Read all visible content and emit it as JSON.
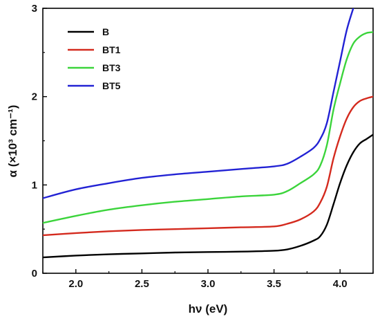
{
  "chart_data": {
    "type": "line",
    "xlabel": "hν (eV)",
    "ylabel": "α (×10³ cm⁻¹)",
    "xlim": [
      1.75,
      4.25
    ],
    "ylim": [
      0,
      3
    ],
    "xticks": [
      2.0,
      2.5,
      3.0,
      3.5,
      4.0
    ],
    "xtick_labels": [
      "2.0",
      "2.5",
      "3.0",
      "3.5",
      "4.0"
    ],
    "yticks": [
      0,
      1,
      2,
      3
    ],
    "ytick_labels": [
      "0",
      "1",
      "2",
      "3"
    ],
    "legend_position": "top-left",
    "series": [
      {
        "name": "B",
        "color": "#000000",
        "points": [
          [
            1.75,
            0.18
          ],
          [
            2.0,
            0.2
          ],
          [
            2.25,
            0.215
          ],
          [
            2.5,
            0.225
          ],
          [
            2.75,
            0.235
          ],
          [
            3.0,
            0.24
          ],
          [
            3.25,
            0.245
          ],
          [
            3.5,
            0.255
          ],
          [
            3.6,
            0.27
          ],
          [
            3.7,
            0.31
          ],
          [
            3.8,
            0.37
          ],
          [
            3.85,
            0.42
          ],
          [
            3.9,
            0.55
          ],
          [
            3.95,
            0.78
          ],
          [
            4.0,
            1.02
          ],
          [
            4.05,
            1.22
          ],
          [
            4.1,
            1.37
          ],
          [
            4.15,
            1.47
          ],
          [
            4.2,
            1.52
          ],
          [
            4.25,
            1.57
          ]
        ]
      },
      {
        "name": "BT1",
        "color": "#d42a1e",
        "points": [
          [
            1.75,
            0.43
          ],
          [
            2.0,
            0.455
          ],
          [
            2.25,
            0.475
          ],
          [
            2.5,
            0.49
          ],
          [
            2.75,
            0.5
          ],
          [
            3.0,
            0.51
          ],
          [
            3.25,
            0.52
          ],
          [
            3.5,
            0.53
          ],
          [
            3.6,
            0.56
          ],
          [
            3.7,
            0.61
          ],
          [
            3.8,
            0.7
          ],
          [
            3.85,
            0.8
          ],
          [
            3.9,
            0.98
          ],
          [
            3.95,
            1.3
          ],
          [
            4.0,
            1.55
          ],
          [
            4.05,
            1.75
          ],
          [
            4.1,
            1.88
          ],
          [
            4.15,
            1.95
          ],
          [
            4.2,
            1.98
          ],
          [
            4.25,
            2.0
          ]
        ]
      },
      {
        "name": "BT3",
        "color": "#3bd43b",
        "points": [
          [
            1.75,
            0.57
          ],
          [
            2.0,
            0.65
          ],
          [
            2.25,
            0.72
          ],
          [
            2.5,
            0.77
          ],
          [
            2.75,
            0.81
          ],
          [
            3.0,
            0.84
          ],
          [
            3.25,
            0.87
          ],
          [
            3.5,
            0.89
          ],
          [
            3.6,
            0.93
          ],
          [
            3.7,
            1.02
          ],
          [
            3.8,
            1.12
          ],
          [
            3.85,
            1.22
          ],
          [
            3.9,
            1.45
          ],
          [
            3.95,
            1.85
          ],
          [
            4.0,
            2.15
          ],
          [
            4.05,
            2.42
          ],
          [
            4.1,
            2.6
          ],
          [
            4.15,
            2.68
          ],
          [
            4.2,
            2.72
          ],
          [
            4.25,
            2.73
          ]
        ]
      },
      {
        "name": "BT5",
        "color": "#2222d4",
        "points": [
          [
            1.75,
            0.85
          ],
          [
            2.0,
            0.95
          ],
          [
            2.25,
            1.02
          ],
          [
            2.5,
            1.08
          ],
          [
            2.75,
            1.12
          ],
          [
            3.0,
            1.15
          ],
          [
            3.25,
            1.18
          ],
          [
            3.5,
            1.21
          ],
          [
            3.6,
            1.24
          ],
          [
            3.7,
            1.32
          ],
          [
            3.8,
            1.42
          ],
          [
            3.85,
            1.52
          ],
          [
            3.9,
            1.7
          ],
          [
            3.95,
            2.05
          ],
          [
            4.0,
            2.4
          ],
          [
            4.05,
            2.75
          ],
          [
            4.1,
            3.0
          ]
        ]
      }
    ]
  }
}
